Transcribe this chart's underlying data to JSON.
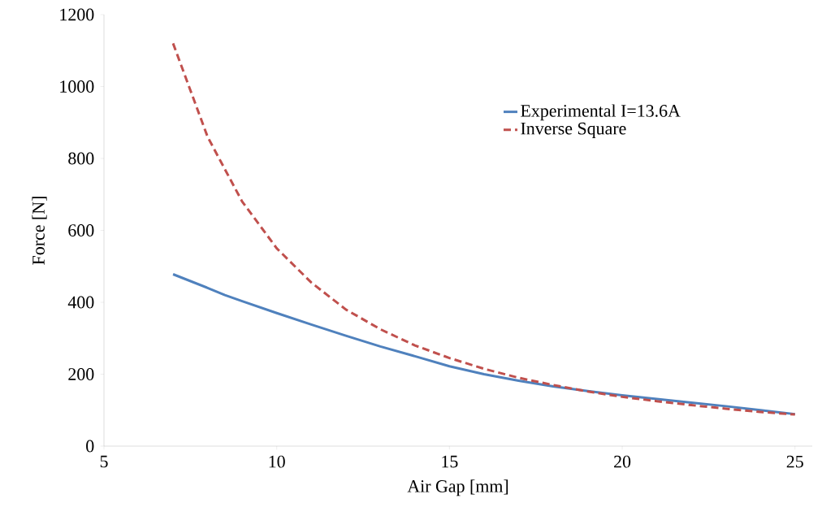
{
  "chart_data": {
    "type": "line",
    "xlabel": "Air Gap [mm]",
    "ylabel": "Force [N]",
    "xlim": [
      5,
      25.5
    ],
    "ylim": [
      0,
      1200
    ],
    "xticks": [
      5,
      10,
      15,
      20,
      25
    ],
    "yticks": [
      0,
      200,
      400,
      600,
      800,
      1000,
      1200
    ],
    "grid": false,
    "legend": "top right",
    "marker": "none",
    "series": [
      {
        "name": "Experimental I=13.6A",
        "color": "#4f81bd",
        "line_style": "solid",
        "x": [
          7,
          8,
          8.5,
          9,
          10,
          11,
          12,
          13,
          14,
          15,
          16,
          17,
          18,
          19,
          20,
          21,
          22,
          23,
          24,
          25
        ],
        "values": [
          478,
          440,
          420,
          403,
          370,
          338,
          307,
          277,
          250,
          222,
          200,
          182,
          166,
          153,
          141,
          131,
          121,
          111,
          100,
          89
        ]
      },
      {
        "name": "Inverse Square",
        "color": "#c0504d",
        "line_style": "dashed",
        "x": [
          7,
          8,
          9,
          10,
          11,
          12,
          13,
          14,
          15,
          16,
          17,
          18,
          19,
          20,
          21,
          22,
          23,
          24,
          25
        ],
        "values": [
          1120,
          860,
          680,
          550,
          455,
          380,
          325,
          280,
          245,
          215,
          190,
          170,
          152,
          137,
          125,
          114,
          104,
          95,
          88
        ]
      }
    ]
  }
}
